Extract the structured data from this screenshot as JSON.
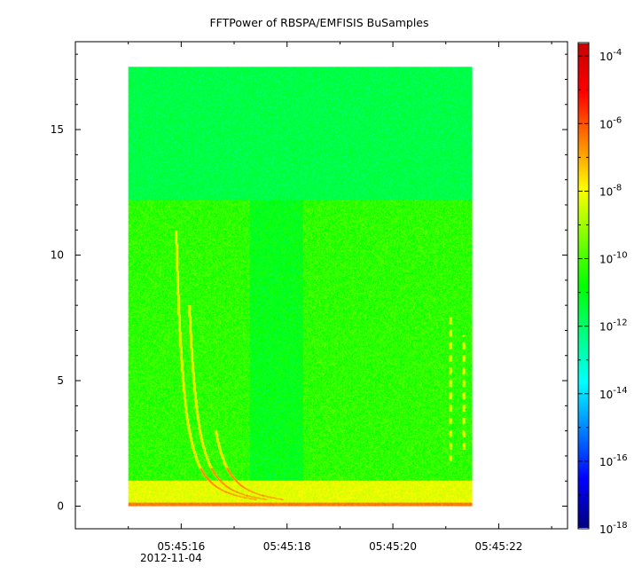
{
  "chart_data": {
    "type": "heatmap",
    "title": "FFTPower of RBSPA/EMFISIS  BuSamples",
    "xlabel": "",
    "ylabel": "",
    "x_axis": {
      "ticks": [
        "05:45:16",
        "05:45:18",
        "05:45:20",
        "05:45:22"
      ],
      "tick_seconds": [
        16,
        18,
        20,
        22
      ],
      "date_label": "2012-11-04",
      "range_seconds": [
        14.0,
        23.3
      ],
      "data_range_seconds": [
        15.0,
        21.5
      ]
    },
    "y_axis": {
      "ticks": [
        "0",
        "5",
        "10",
        "15"
      ],
      "tick_values": [
        0,
        5,
        10,
        15
      ],
      "range": [
        -0.9,
        18.5
      ],
      "data_range": [
        0,
        17.5
      ]
    },
    "colorbar": {
      "scale": "log",
      "range_exponent": [
        -18,
        -3.6
      ],
      "tick_exponents": [
        -18,
        -16,
        -14,
        -12,
        -10,
        -8,
        -6,
        -4
      ],
      "tick_base": "10",
      "colormap": [
        "#00007f",
        "#0000ff",
        "#0080ff",
        "#00ffff",
        "#00ff80",
        "#00ff00",
        "#80ff00",
        "#ffff00",
        "#ff8000",
        "#ff0000",
        "#c80000"
      ]
    },
    "features": [
      {
        "kind": "background_upper",
        "y_range": [
          12.2,
          17.5
        ],
        "log_power": -11.6
      },
      {
        "kind": "background_lower",
        "y_range": [
          1.0,
          12.2
        ],
        "log_power": -10.3
      },
      {
        "kind": "low_band",
        "y_range": [
          0,
          1.0
        ],
        "log_power": -8.2
      },
      {
        "kind": "dispersed_whistler",
        "t0": 15.9,
        "f_top": 11.0
      },
      {
        "kind": "dispersed_whistler",
        "t0": 16.15,
        "f_top": 8.0
      },
      {
        "kind": "dispersed_whistler",
        "t0": 16.65,
        "f_top": 3.0
      },
      {
        "kind": "dashed_emission",
        "t": 21.1,
        "y_range": [
          1.8,
          7.5
        ]
      },
      {
        "kind": "dashed_emission",
        "t": 21.35,
        "y_range": [
          2.0,
          6.8
        ]
      }
    ]
  }
}
